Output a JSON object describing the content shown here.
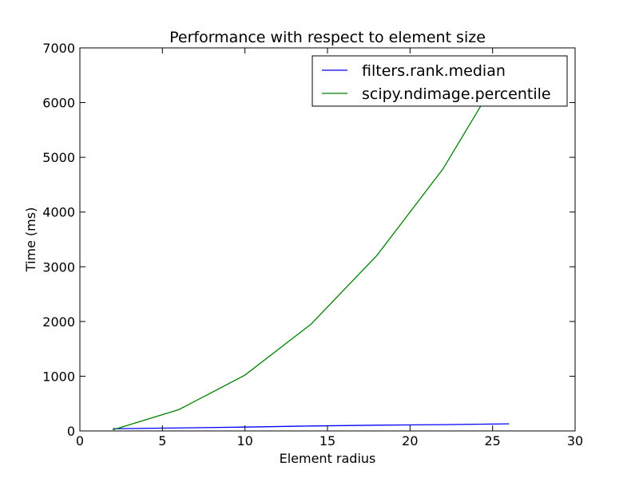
{
  "chart_data": {
    "type": "line",
    "title": "Performance with respect to element size",
    "xlabel": "Element radius",
    "ylabel": "Time (ms)",
    "xlim": [
      0,
      30
    ],
    "ylim": [
      0,
      7000
    ],
    "xticks": [
      0,
      5,
      10,
      15,
      20,
      25,
      30
    ],
    "yticks": [
      0,
      1000,
      2000,
      3000,
      4000,
      5000,
      6000,
      7000
    ],
    "grid": false,
    "legend_position": "top-right",
    "series": [
      {
        "name": "filters.rank.median",
        "color": "#0000ff",
        "x": [
          2,
          6,
          10,
          14,
          18,
          22,
          26
        ],
        "y": [
          40,
          55,
          70,
          90,
          105,
          115,
          130
        ]
      },
      {
        "name": "scipy.ndimage.percentile",
        "color": "#008000",
        "x": [
          2,
          6,
          10,
          14,
          18,
          22,
          26
        ],
        "y": [
          20,
          390,
          1020,
          1950,
          3210,
          4790,
          6800
        ]
      }
    ]
  }
}
